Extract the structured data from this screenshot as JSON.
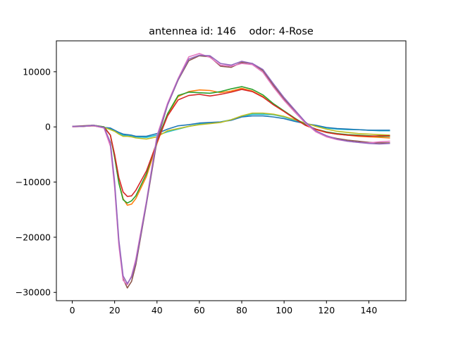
{
  "chart_data": {
    "type": "line",
    "title": "antennea id: 146    odor: 4-Rose",
    "xlabel": "",
    "ylabel": "",
    "xlim": [
      -7.5,
      157.5
    ],
    "ylim": [
      -31500,
      15600
    ],
    "xticks": [
      0,
      20,
      40,
      60,
      80,
      100,
      120,
      140
    ],
    "yticks": [
      -30000,
      -20000,
      -10000,
      0,
      10000
    ],
    "x_tick_labels": [
      "0",
      "20",
      "40",
      "60",
      "80",
      "100",
      "120",
      "140"
    ],
    "y_tick_labels": [
      "−30000",
      "−20000",
      "−10000",
      "0",
      "10000"
    ],
    "grid": false,
    "x": [
      0,
      5,
      10,
      15,
      18,
      20,
      22,
      24,
      26,
      28,
      30,
      35,
      40,
      45,
      50,
      55,
      60,
      65,
      70,
      75,
      80,
      85,
      90,
      95,
      100,
      105,
      110,
      115,
      120,
      125,
      130,
      135,
      140,
      145,
      150
    ],
    "series": [
      {
        "color": "#17becf",
        "values": [
          100,
          100,
          200,
          -100,
          -300,
          -700,
          -1200,
          -1500,
          -1600,
          -1700,
          -1800,
          -1900,
          -1500,
          -900,
          -400,
          100,
          500,
          700,
          900,
          1300,
          1900,
          2300,
          2300,
          2200,
          1800,
          1200,
          600,
          200,
          -200,
          -400,
          -500,
          -500,
          -600,
          -700,
          -700
        ]
      },
      {
        "color": "#1f77b4",
        "values": [
          100,
          100,
          300,
          -100,
          -200,
          -600,
          -1000,
          -1300,
          -1400,
          -1500,
          -1700,
          -1700,
          -1200,
          -400,
          200,
          400,
          700,
          800,
          900,
          1200,
          1800,
          2000,
          2000,
          1800,
          1500,
          1000,
          600,
          300,
          -100,
          -300,
          -400,
          -500,
          -600,
          -600,
          -600
        ]
      },
      {
        "color": "#bcbd22",
        "values": [
          0,
          100,
          200,
          -100,
          -500,
          -800,
          -1300,
          -1700,
          -1700,
          -1800,
          -2000,
          -2200,
          -1800,
          -700,
          -300,
          100,
          400,
          600,
          800,
          1300,
          2000,
          2500,
          2500,
          2300,
          1900,
          1300,
          700,
          100,
          -400,
          -800,
          -1000,
          -1200,
          -1300,
          -1400,
          -1500
        ]
      },
      {
        "color": "#ff7f0e",
        "values": [
          100,
          100,
          300,
          0,
          -1500,
          -5500,
          -10000,
          -13000,
          -14200,
          -14000,
          -13000,
          -9000,
          -3000,
          2200,
          5500,
          6400,
          6700,
          6600,
          6200,
          6500,
          7000,
          6500,
          5500,
          4000,
          2800,
          1500,
          300,
          -500,
          -1000,
          -1300,
          -1500,
          -1700,
          -1800,
          -1900,
          -2000
        ]
      },
      {
        "color": "#2ca02c",
        "values": [
          100,
          100,
          300,
          0,
          -1500,
          -5500,
          -10200,
          -13200,
          -13800,
          -13400,
          -12500,
          -8500,
          -2600,
          2400,
          5700,
          6300,
          6200,
          6100,
          6400,
          6900,
          7300,
          6800,
          5800,
          4200,
          2900,
          1600,
          400,
          -400,
          -900,
          -1200,
          -1400,
          -1500,
          -1600,
          -1700,
          -1700
        ]
      },
      {
        "color": "#d62728",
        "values": [
          100,
          100,
          200,
          -100,
          -1500,
          -5000,
          -9200,
          -11800,
          -12600,
          -12500,
          -11500,
          -8000,
          -2800,
          2000,
          4900,
          5700,
          5900,
          5600,
          5900,
          6300,
          6800,
          6400,
          5400,
          4000,
          2800,
          1500,
          300,
          -400,
          -1000,
          -1300,
          -1500,
          -1600,
          -1700,
          -1600,
          -1600
        ]
      },
      {
        "color": "#8c564b",
        "values": [
          100,
          200,
          300,
          -100,
          -3000,
          -10500,
          -21000,
          -27500,
          -29200,
          -28000,
          -25000,
          -14000,
          -2500,
          4000,
          8500,
          12000,
          12900,
          12700,
          11000,
          10800,
          11700,
          11500,
          10200,
          7500,
          5000,
          3000,
          900,
          -800,
          -1700,
          -2100,
          -2400,
          -2600,
          -2800,
          -2900,
          -2900
        ]
      },
      {
        "color": "#e377c2",
        "values": [
          0,
          100,
          200,
          -200,
          -3500,
          -11000,
          -21500,
          -27800,
          -28600,
          -27000,
          -24000,
          -13500,
          -1600,
          4300,
          8800,
          12700,
          13300,
          12600,
          11200,
          11000,
          11500,
          11300,
          9900,
          7200,
          4800,
          2700,
          700,
          -900,
          -1800,
          -2300,
          -2600,
          -2800,
          -2900,
          -2700,
          -2600
        ]
      },
      {
        "color": "#9467bd",
        "values": [
          100,
          100,
          300,
          -100,
          -2800,
          -10000,
          -20500,
          -27000,
          -28400,
          -27200,
          -24500,
          -13800,
          -2000,
          4000,
          8600,
          12300,
          13000,
          12900,
          11500,
          11200,
          11900,
          11500,
          10400,
          7800,
          5300,
          3100,
          900,
          -700,
          -1600,
          -2200,
          -2600,
          -2800,
          -3000,
          -3100,
          -3000
        ]
      }
    ]
  }
}
